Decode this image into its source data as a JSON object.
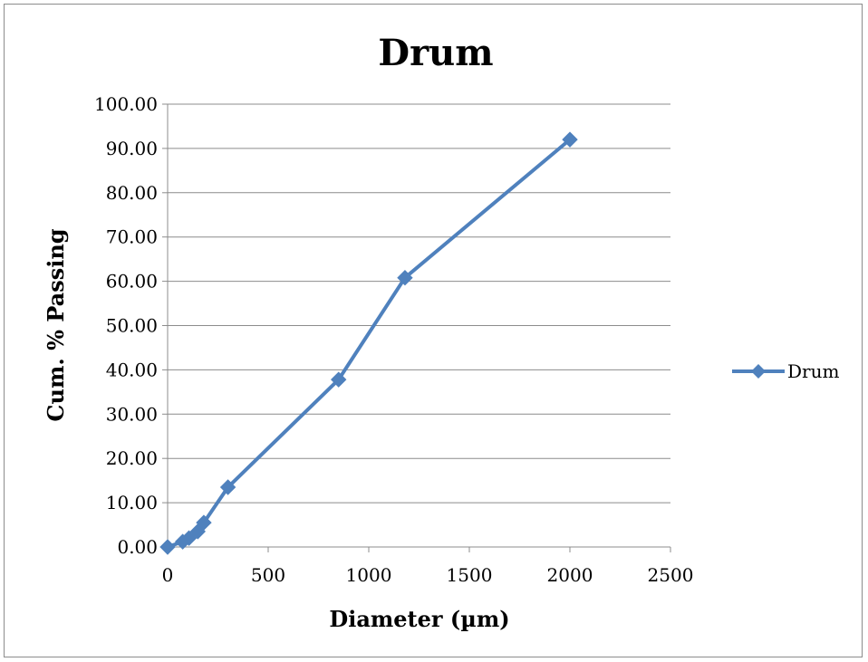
{
  "chart_data": {
    "type": "line",
    "title": "Drum",
    "xlabel": "Diameter (µm)",
    "ylabel": "Cum. % Passing",
    "xlim": [
      0,
      2500
    ],
    "ylim": [
      0,
      100
    ],
    "x_ticks": [
      "0",
      "500",
      "1000",
      "1500",
      "2000",
      "2500"
    ],
    "y_ticks": [
      "0.00",
      "10.00",
      "20.00",
      "30.00",
      "40.00",
      "50.00",
      "60.00",
      "70.00",
      "80.00",
      "90.00",
      "100.00"
    ],
    "grid": "horizontal",
    "legend": "right",
    "series": [
      {
        "name": "Drum",
        "color": "#4F81BD",
        "marker": "diamond",
        "points": [
          {
            "x": 0,
            "y": 0.0
          },
          {
            "x": 75,
            "y": 1.2
          },
          {
            "x": 106,
            "y": 2.0
          },
          {
            "x": 150,
            "y": 3.5
          },
          {
            "x": 180,
            "y": 5.5
          },
          {
            "x": 300,
            "y": 13.5
          },
          {
            "x": 850,
            "y": 37.8
          },
          {
            "x": 1180,
            "y": 60.8
          },
          {
            "x": 2000,
            "y": 92.0
          }
        ]
      }
    ]
  }
}
